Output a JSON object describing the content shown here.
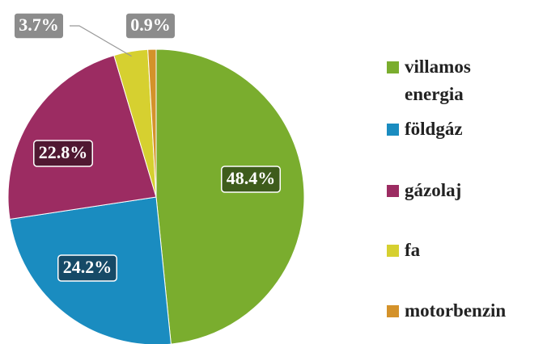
{
  "chart_data": {
    "type": "pie",
    "categories": [
      "villamos energia",
      "földgáz",
      "gázolaj",
      "fa",
      "motorbenzin"
    ],
    "values": [
      48.4,
      24.2,
      22.8,
      3.7,
      0.9
    ],
    "value_labels": [
      "48.4%",
      "24.2%",
      "22.8%",
      "3.7%",
      "0.9%"
    ],
    "colors": [
      "#7aad2e",
      "#1a8cc0",
      "#9c2c62",
      "#d6d030",
      "#d4922a"
    ],
    "legend": "right"
  }
}
